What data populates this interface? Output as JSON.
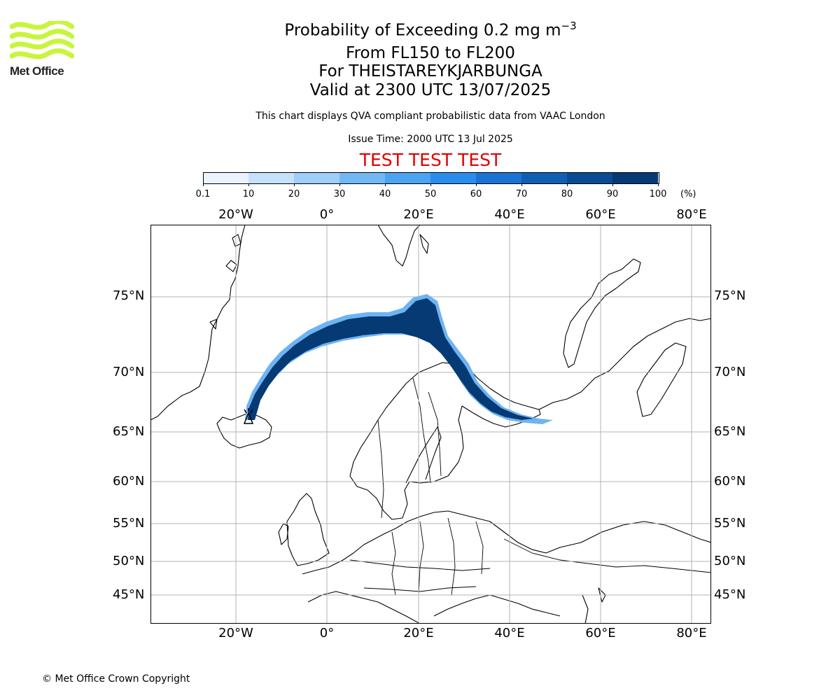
{
  "header": {
    "title_main": "Probability of Exceeding 0.2 mg m",
    "title_sup": "−3",
    "level_range": "From FL150 to FL200",
    "volcano_line": "For THEISTAREYKJARBUNGA",
    "valid_line": "Valid at 2300 UTC 13/07/2025",
    "description": "This chart displays QVA compliant probabilistic data from VAAC London",
    "issue_time": "Issue Time: 2000 UTC 13 Jul 2025",
    "test_banner": "TEST TEST TEST",
    "test_color": "#e00000"
  },
  "logo": {
    "text": "Met Office",
    "icon": "met-office-wave-logo",
    "color": "#c8f53c"
  },
  "colorbar": {
    "ticks": [
      "0.1",
      "10",
      "20",
      "30",
      "40",
      "50",
      "60",
      "70",
      "80",
      "90",
      "100"
    ],
    "unit": "(%)",
    "colors": [
      "#eaf4fe",
      "#c6e2fb",
      "#9fcef8",
      "#72b8f5",
      "#4ba3f2",
      "#2a8ded",
      "#1a73d4",
      "#0f5fb5",
      "#0a4c94",
      "#063a74",
      "#042b57"
    ]
  },
  "map": {
    "lon_labels": [
      "20°W",
      "0°",
      "20°E",
      "40°E",
      "60°E",
      "80°E"
    ],
    "lat_labels": [
      "75°N",
      "70°N",
      "65°N",
      "60°N",
      "55°N",
      "50°N",
      "45°N"
    ],
    "plume_color": "#063a74",
    "volcano_icon": "volcano-marker-icon"
  },
  "footer": {
    "copyright": "© Met Office Crown Copyright"
  }
}
